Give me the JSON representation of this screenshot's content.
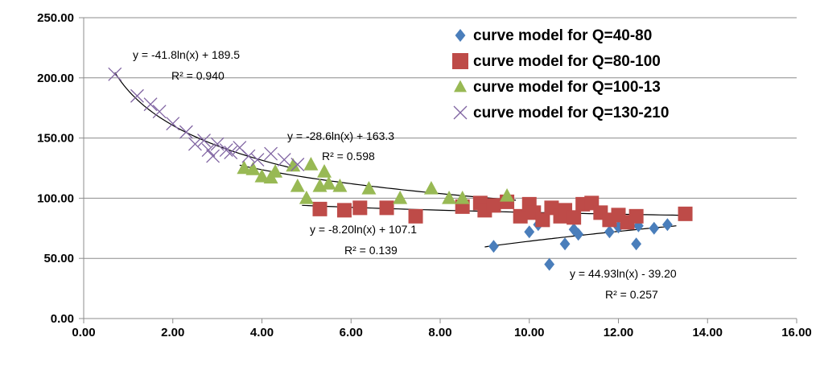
{
  "chart_data": {
    "type": "scatter",
    "xlim": [
      0,
      16
    ],
    "ylim": [
      0,
      250
    ],
    "x_ticks": [
      "0.00",
      "2.00",
      "4.00",
      "6.00",
      "8.00",
      "10.00",
      "12.00",
      "14.00",
      "16.00"
    ],
    "y_ticks": [
      "0.00",
      "50.00",
      "100.00",
      "150.00",
      "200.00",
      "250.00"
    ],
    "grid": "horizontal",
    "legend": "top-right",
    "series": [
      {
        "name": "curve model for Q=40-80",
        "marker": "diamond",
        "color": "#4a7ebb",
        "points": [
          [
            9.2,
            60
          ],
          [
            10.0,
            72
          ],
          [
            10.2,
            78
          ],
          [
            10.45,
            45
          ],
          [
            10.8,
            62
          ],
          [
            11.0,
            74
          ],
          [
            11.1,
            70
          ],
          [
            11.8,
            72
          ],
          [
            12.0,
            76
          ],
          [
            12.4,
            62
          ],
          [
            12.45,
            77
          ],
          [
            12.8,
            75
          ],
          [
            13.1,
            78
          ]
        ],
        "trend": {
          "a": 44.93,
          "b": -39.2,
          "x_from": 9.0,
          "x_to": 13.3
        },
        "equation": "y = 44.93ln(x) - 39.20",
        "r2": "R² = 0.257"
      },
      {
        "name": "curve model for Q=80-100",
        "marker": "square",
        "color": "#be4b48",
        "points": [
          [
            5.3,
            91
          ],
          [
            5.85,
            90
          ],
          [
            6.2,
            92
          ],
          [
            6.8,
            92
          ],
          [
            7.45,
            85
          ],
          [
            8.5,
            93
          ],
          [
            8.9,
            96
          ],
          [
            9.0,
            90
          ],
          [
            9.2,
            94
          ],
          [
            9.5,
            97
          ],
          [
            9.8,
            85
          ],
          [
            10.0,
            95
          ],
          [
            10.1,
            88
          ],
          [
            10.3,
            82
          ],
          [
            10.5,
            92
          ],
          [
            10.7,
            85
          ],
          [
            10.8,
            90
          ],
          [
            11.0,
            84
          ],
          [
            11.2,
            95
          ],
          [
            11.4,
            96
          ],
          [
            11.6,
            88
          ],
          [
            11.8,
            82
          ],
          [
            12.0,
            86
          ],
          [
            12.2,
            80
          ],
          [
            12.4,
            85
          ],
          [
            13.5,
            87
          ]
        ],
        "trend": {
          "a": -8.2,
          "b": 107.1,
          "x_from": 4.9,
          "x_to": 13.5
        },
        "equation": "y = -8.20ln(x) + 107.1",
        "r2": "R² = 0.139"
      },
      {
        "name": "curve model for Q=100-13",
        "marker": "triangle",
        "color": "#98b954",
        "points": [
          [
            3.6,
            125
          ],
          [
            3.8,
            124
          ],
          [
            4.0,
            118
          ],
          [
            4.2,
            117
          ],
          [
            4.3,
            122
          ],
          [
            4.7,
            127
          ],
          [
            4.8,
            110
          ],
          [
            5.0,
            100
          ],
          [
            5.1,
            128
          ],
          [
            5.3,
            110
          ],
          [
            5.4,
            122
          ],
          [
            5.5,
            112
          ],
          [
            5.75,
            110
          ],
          [
            6.4,
            108
          ],
          [
            7.1,
            100
          ],
          [
            7.8,
            108
          ],
          [
            8.2,
            100
          ],
          [
            8.5,
            100
          ],
          [
            9.5,
            102
          ]
        ],
        "trend": {
          "a": -28.6,
          "b": 163.3,
          "x_from": 3.5,
          "x_to": 9.7
        },
        "equation": "y = -28.6ln(x) + 163.3",
        "r2": "R² = 0.598"
      },
      {
        "name": "curve model for Q=130-210",
        "marker": "x",
        "color": "#8064a2",
        "points": [
          [
            0.7,
            203
          ],
          [
            1.2,
            185
          ],
          [
            1.5,
            178
          ],
          [
            1.7,
            172
          ],
          [
            2.0,
            162
          ],
          [
            2.3,
            155
          ],
          [
            2.5,
            145
          ],
          [
            2.7,
            148
          ],
          [
            2.8,
            140
          ],
          [
            2.9,
            135
          ],
          [
            3.0,
            145
          ],
          [
            3.2,
            140
          ],
          [
            3.3,
            138
          ],
          [
            3.5,
            142
          ],
          [
            3.7,
            135
          ],
          [
            3.9,
            132
          ],
          [
            4.2,
            137
          ],
          [
            4.5,
            132
          ],
          [
            4.8,
            128
          ]
        ],
        "trend": {
          "a": -41.8,
          "b": 189.5,
          "x_from": 0.7,
          "x_to": 4.6
        },
        "equation": "y = -41.8ln(x) + 189.5",
        "r2": "R² = 0.940"
      }
    ]
  }
}
